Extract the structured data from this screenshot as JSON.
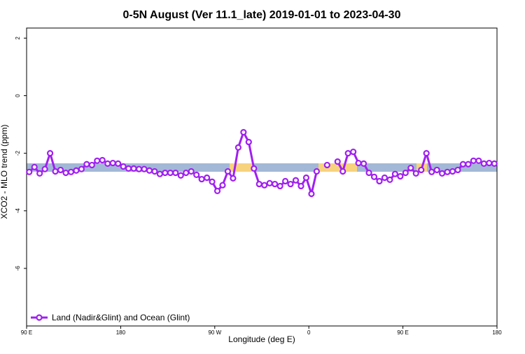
{
  "chart_data": {
    "type": "line",
    "title": "0-5N August (Ver 11.1_late)   2019-01-01 to 2023-04-30",
    "x_label": "Longitude (deg E)",
    "y_label": "XCO2 - MLO trend (ppm)",
    "x": [
      92.5,
      97.5,
      102.5,
      107.5,
      112.5,
      117.5,
      122.5,
      127.5,
      132.5,
      137.5,
      142.5,
      147.5,
      152.5,
      157.5,
      162.5,
      167.5,
      172.5,
      177.5,
      182.5,
      187.5,
      192.5,
      197.5,
      202.5,
      207.5,
      212.5,
      217.5,
      222.5,
      227.5,
      232.5,
      237.5,
      242.5,
      247.5,
      252.5,
      257.5,
      262.5,
      267.5,
      272.5,
      277.5,
      282.5,
      287.5,
      292.5,
      297.5,
      302.5,
      307.5,
      312.5,
      317.5,
      322.5,
      327.5,
      332.5,
      337.5,
      342.5,
      347.5,
      352.5,
      357.5,
      362.5,
      367.5,
      372.5,
      377.5,
      382.5,
      387.5,
      392.5,
      397.5,
      402.5,
      407.5,
      412.5,
      417.5,
      422.5,
      427.5,
      432.5,
      437.5,
      442.5,
      447.5,
      452.5,
      457.5,
      462.5,
      467.5,
      472.5,
      477.5,
      482.5,
      487.5,
      492.5,
      497.5,
      502.5,
      507.5,
      512.5,
      517.5,
      522.5,
      527.5,
      532.5,
      537.5
    ],
    "series": [
      {
        "name": "Land (Nadir&Glint) and Ocean (Glint)",
        "color": "#a020f0",
        "values": [
          -2.65,
          -2.48,
          -2.7,
          -2.55,
          -2.0,
          -2.63,
          -2.58,
          -2.68,
          -2.65,
          -2.6,
          -2.55,
          -2.38,
          -2.41,
          -2.26,
          -2.24,
          -2.36,
          -2.34,
          -2.36,
          -2.46,
          -2.53,
          -2.53,
          -2.55,
          -2.55,
          -2.6,
          -2.63,
          -2.72,
          -2.68,
          -2.68,
          -2.68,
          -2.77,
          -2.68,
          -2.63,
          -2.75,
          -2.9,
          -2.85,
          -2.99,
          -3.31,
          -3.11,
          -2.63,
          -2.87,
          -1.8,
          -1.27,
          -1.61,
          -2.53,
          -3.07,
          -3.11,
          -3.04,
          -3.07,
          -3.14,
          -2.97,
          -3.07,
          -2.94,
          -3.14,
          -2.85,
          -3.41,
          -2.63,
          null,
          -2.41,
          null,
          -2.29,
          -2.63,
          -2.0,
          -1.95,
          -2.34,
          -2.36,
          -2.68,
          -2.82,
          -2.97,
          -2.85,
          -2.92,
          -2.72,
          -2.8,
          -2.68,
          -2.51,
          -2.7,
          -2.58,
          -2.0,
          -2.65,
          -2.58,
          -2.7,
          -2.65,
          -2.63,
          -2.58,
          -2.38,
          -2.38,
          -2.26,
          -2.26,
          -2.36,
          -2.34,
          -2.36
        ]
      }
    ],
    "xlim": [
      90,
      540
    ],
    "xticks": [
      {
        "value": 90,
        "label": "90 E"
      },
      180,
      {
        "value": 270,
        "label": "90 W"
      },
      {
        "value": 360,
        "label": "0"
      },
      {
        "value": 450,
        "label": "90 E"
      },
      {
        "value": 540,
        "label": "180"
      }
    ],
    "ylim": [
      -8,
      2.35
    ],
    "yticks": [
      2,
      0,
      -2,
      -4,
      -6
    ],
    "legend": "bottom-left"
  }
}
